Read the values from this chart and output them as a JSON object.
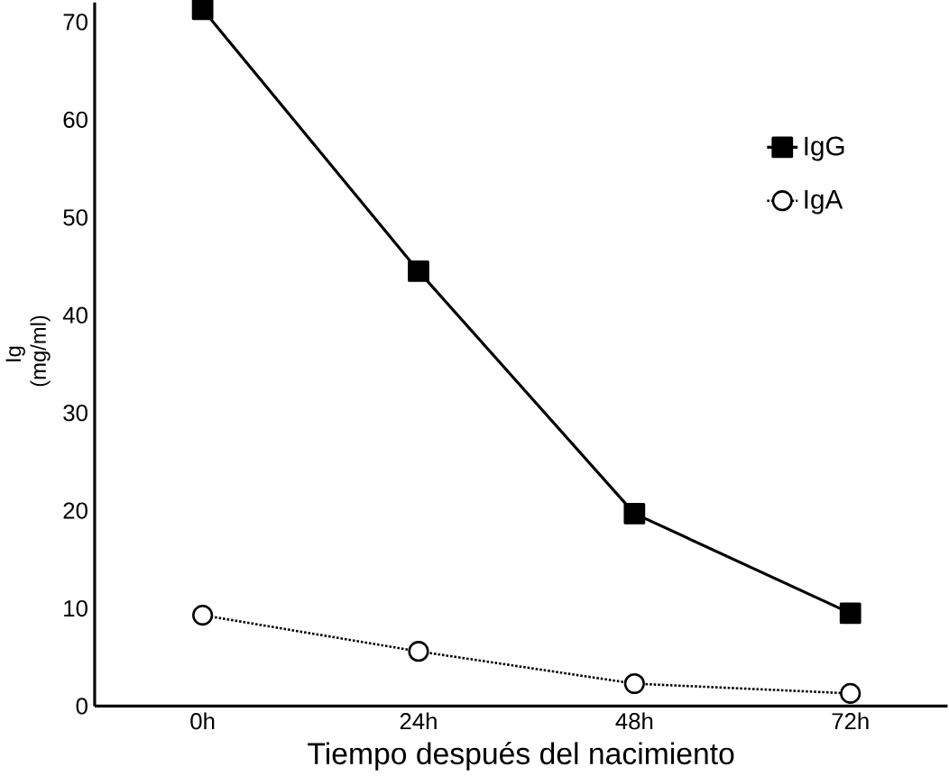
{
  "chart_data": {
    "type": "line",
    "xlabel": "Tiempo después del nacimiento",
    "ylabel": "Ig (mg/ml)",
    "categories": [
      "0h",
      "24h",
      "48h",
      "72h"
    ],
    "series": [
      {
        "name": "IgG",
        "color": "#000000",
        "values": [
          71.3,
          44.5,
          19.7,
          9.5
        ],
        "marker": "square",
        "line_style": "solid"
      },
      {
        "name": "IgA",
        "color": "#000000",
        "values": [
          9.3,
          5.6,
          2.3,
          1.3
        ],
        "marker": "circle",
        "line_style": "dotted"
      }
    ],
    "ylim": [
      0,
      72
    ],
    "yticks": [
      0,
      10,
      20,
      30,
      40,
      50,
      60,
      70
    ],
    "grid": false,
    "legend": "top right"
  }
}
